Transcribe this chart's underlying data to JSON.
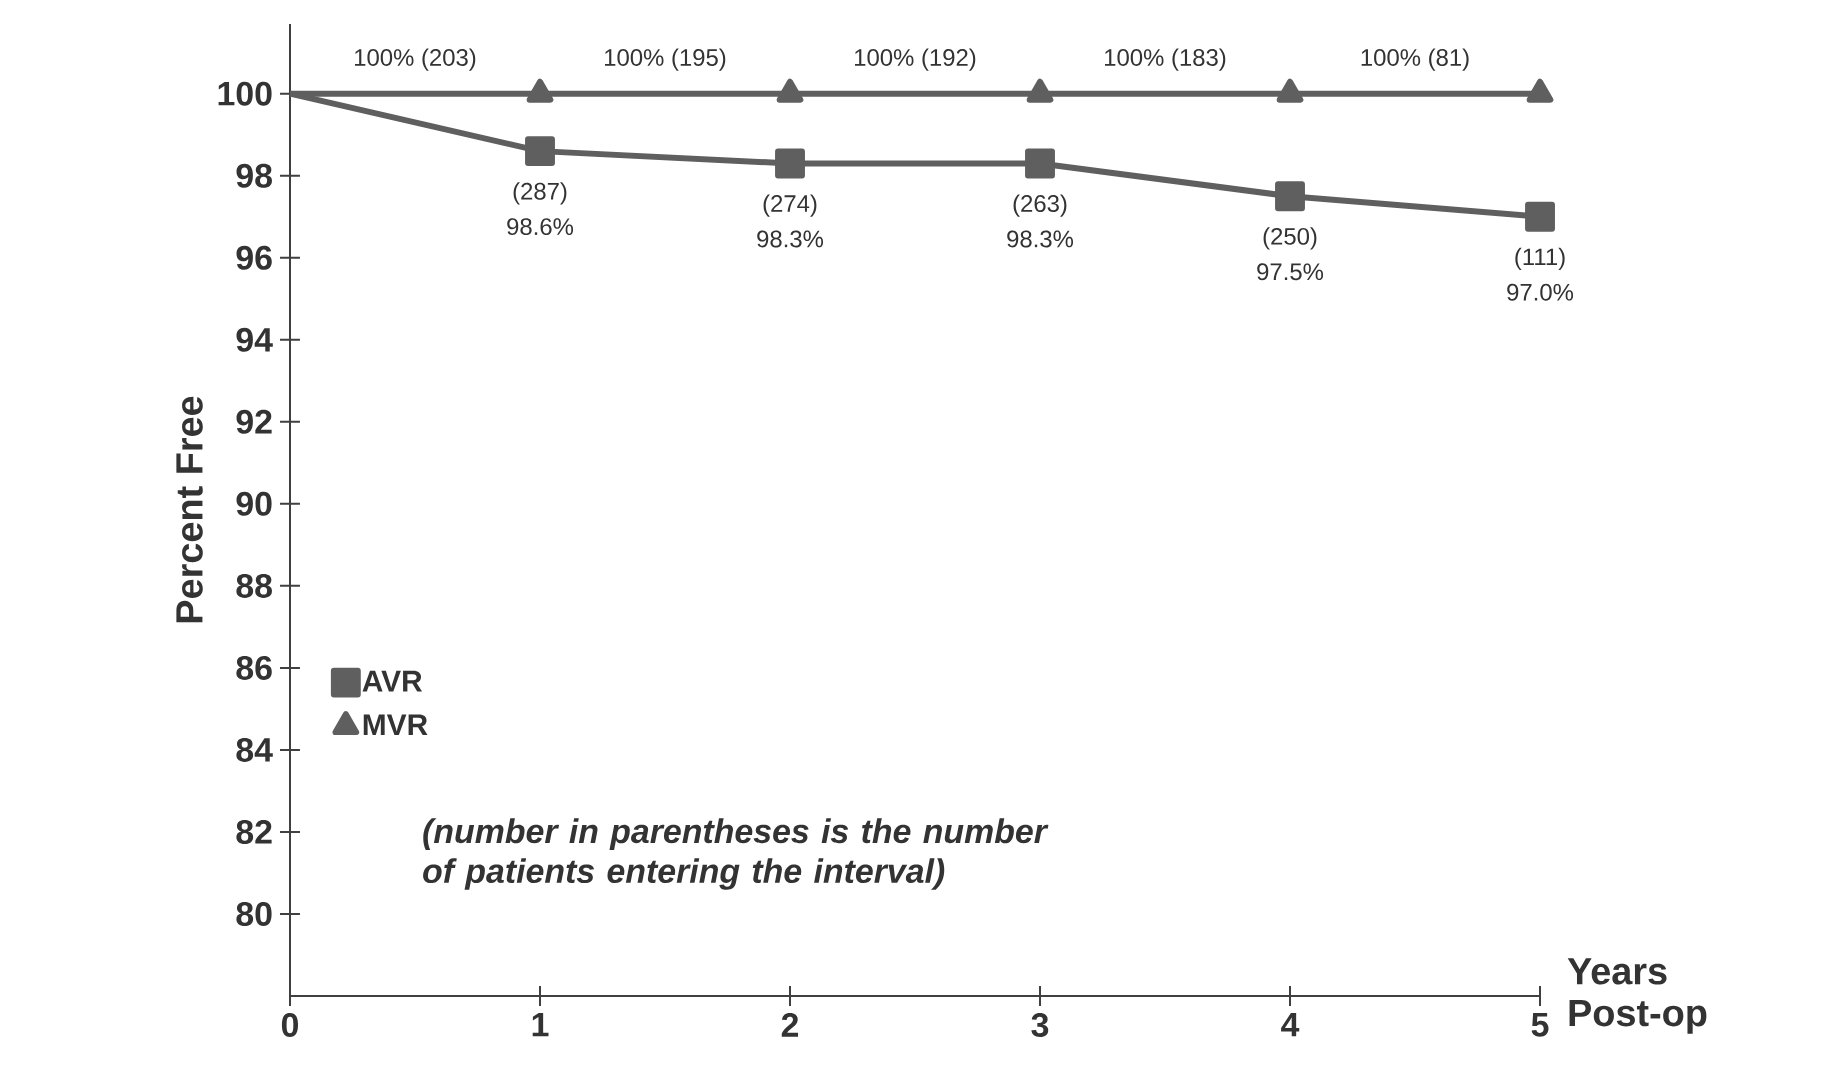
{
  "chart_data": {
    "type": "line",
    "ylabel": "Percent Free",
    "xlabel": "Years Post-op",
    "x": [
      0,
      1,
      2,
      3,
      4,
      5
    ],
    "series": [
      {
        "name": "AVR",
        "color": "#5f5f5f",
        "marker": "square",
        "values": [
          100,
          98.6,
          98.3,
          98.3,
          97.5,
          97.0
        ],
        "value_labels": [
          null,
          "98.6%",
          "98.3%",
          "98.3%",
          "97.5%",
          "97.0%"
        ]
      },
      {
        "name": "MVR",
        "color": "#5f5f5f",
        "marker": "triangle",
        "values": [
          100,
          100,
          100,
          100,
          100,
          100
        ]
      }
    ],
    "xlim": [
      0,
      5
    ],
    "xticks": [
      0,
      1,
      2,
      3,
      4,
      5
    ],
    "ylim": [
      78,
      101.7
    ],
    "yticks": [
      80,
      82,
      84,
      86,
      88,
      90,
      92,
      94,
      96,
      98,
      100
    ],
    "legend": "left",
    "grid": false,
    "annotations": [
      {
        "text": "(287)",
        "x": 1,
        "y": 98.6
      },
      {
        "text": "(274)",
        "x": 2,
        "y": 98.3
      },
      {
        "text": "(263)",
        "x": 3,
        "y": 98.3
      },
      {
        "text": "(250)",
        "x": 4,
        "y": 97.5
      },
      {
        "text": "(111)",
        "x": 5,
        "y": 97.0
      },
      {
        "text": "100% (203)",
        "x": 0.5,
        "y": 100
      },
      {
        "text": "100% (195)",
        "x": 1.5,
        "y": 100
      },
      {
        "text": "100% (192)",
        "x": 2.5,
        "y": 100
      },
      {
        "text": "100% (183)",
        "x": 3.5,
        "y": 100
      },
      {
        "text": "100% (81)",
        "x": 4.5,
        "y": 100
      },
      "(number in parentheses is the number of patients entering the interval)"
    ]
  }
}
